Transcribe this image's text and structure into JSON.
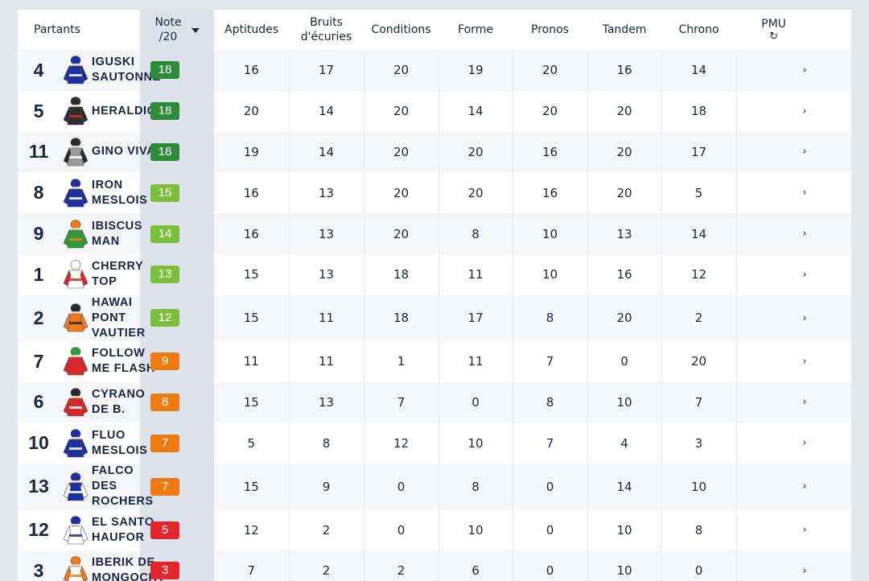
{
  "header": {
    "partants": "Partants",
    "note_line1": "Note",
    "note_line2": "/20",
    "aptitudes": "Aptitudes",
    "bruits_line1": "Bruits",
    "bruits_line2": "d'écuries",
    "conditions": "Conditions",
    "forme": "Forme",
    "pronos": "Pronos",
    "tandem": "Tandem",
    "chrono": "Chrono",
    "pmu": "PMU",
    "refresh_icon": "refresh-icon",
    "sort_icon": "caret-down-icon"
  },
  "colors": {
    "dark_green": "#2e8b3a",
    "light_green": "#7cbf3c",
    "orange": "#f07a12",
    "red": "#e3262b"
  },
  "rows": [
    {
      "num": "4",
      "name": "IGUSKI SAUTONNE",
      "note": "18",
      "note_color": "#2e8b3a",
      "aptitudes": "16",
      "bruits": "17",
      "conditions": "20",
      "forme": "19",
      "pronos": "20",
      "tandem": "16",
      "chrono": "14",
      "silk": {
        "body": "#1f2fa0",
        "sleeves": "#1f2fa0",
        "cap": "#1f2fa0",
        "accent": "#ffffff"
      },
      "chevron": "›"
    },
    {
      "num": "5",
      "name": "HERALDIQUE",
      "note": "18",
      "note_color": "#2e8b3a",
      "aptitudes": "20",
      "bruits": "14",
      "conditions": "20",
      "forme": "14",
      "pronos": "20",
      "tandem": "20",
      "chrono": "18",
      "silk": {
        "body": "#2c2c2c",
        "sleeves": "#2c2c2c",
        "cap": "#2c2c2c",
        "accent": "#c4322a"
      },
      "chevron": "›"
    },
    {
      "num": "11",
      "name": "GINO VIVA",
      "note": "18",
      "note_color": "#2e8b3a",
      "aptitudes": "19",
      "bruits": "14",
      "conditions": "20",
      "forme": "20",
      "pronos": "16",
      "tandem": "20",
      "chrono": "17",
      "silk": {
        "body": "#9a9a9a",
        "sleeves": "#2b2b2b",
        "cap": "#2b2b2b",
        "accent": "#ffffff"
      },
      "chevron": "›"
    },
    {
      "num": "8",
      "name": "IRON MESLOIS",
      "note": "15",
      "note_color": "#7cbf3c",
      "aptitudes": "16",
      "bruits": "13",
      "conditions": "20",
      "forme": "20",
      "pronos": "16",
      "tandem": "20",
      "chrono": "5",
      "silk": {
        "body": "#1f2fa0",
        "sleeves": "#1f2fa0",
        "cap": "#1f2fa0",
        "accent": "#ffffff"
      },
      "chevron": "›"
    },
    {
      "num": "9",
      "name": "IBISCUS MAN",
      "note": "14",
      "note_color": "#7cbf3c",
      "aptitudes": "16",
      "bruits": "13",
      "conditions": "20",
      "forme": "8",
      "pronos": "10",
      "tandem": "13",
      "chrono": "14",
      "silk": {
        "body": "#2e9a3a",
        "sleeves": "#2e9a3a",
        "cap": "#f07a12",
        "accent": "#f07a12"
      },
      "chevron": "›"
    },
    {
      "num": "1",
      "name": "CHERRY TOP",
      "note": "13",
      "note_color": "#7cbf3c",
      "aptitudes": "15",
      "bruits": "13",
      "conditions": "18",
      "forme": "11",
      "pronos": "10",
      "tandem": "16",
      "chrono": "12",
      "silk": {
        "body": "#ffffff",
        "sleeves": "#d8262b",
        "cap": "#ffffff",
        "accent": "#d8262b"
      },
      "chevron": "›"
    },
    {
      "num": "2",
      "name": "HAWAI PONT VAUTIER",
      "note": "12",
      "note_color": "#7cbf3c",
      "aptitudes": "15",
      "bruits": "11",
      "conditions": "18",
      "forme": "17",
      "pronos": "8",
      "tandem": "20",
      "chrono": "2",
      "silk": {
        "body": "#f07a22",
        "sleeves": "#f07a22",
        "cap": "#2b2b2b",
        "accent": "#2b2b2b"
      },
      "chevron": "›"
    },
    {
      "num": "7",
      "name": "FOLLOW ME FLASH",
      "note": "9",
      "note_color": "#f07a12",
      "aptitudes": "11",
      "bruits": "11",
      "conditions": "1",
      "forme": "11",
      "pronos": "7",
      "tandem": "0",
      "chrono": "20",
      "silk": {
        "body": "#d8262b",
        "sleeves": "#d8262b",
        "cap": "#2e9a3a",
        "accent": "#d8262b"
      },
      "chevron": "›"
    },
    {
      "num": "6",
      "name": "CYRANO DE B.",
      "note": "8",
      "note_color": "#f07a12",
      "aptitudes": "15",
      "bruits": "13",
      "conditions": "7",
      "forme": "0",
      "pronos": "8",
      "tandem": "10",
      "chrono": "7",
      "silk": {
        "body": "#d8262b",
        "sleeves": "#d8262b",
        "cap": "#2b2b2b",
        "accent": "#ffffff"
      },
      "chevron": "›"
    },
    {
      "num": "10",
      "name": "FLUO MESLOIS",
      "note": "7",
      "note_color": "#f07a12",
      "aptitudes": "5",
      "bruits": "8",
      "conditions": "12",
      "forme": "10",
      "pronos": "7",
      "tandem": "4",
      "chrono": "3",
      "silk": {
        "body": "#1f2fa0",
        "sleeves": "#1f2fa0",
        "cap": "#1f2fa0",
        "accent": "#ffffff"
      },
      "chevron": "›"
    },
    {
      "num": "13",
      "name": "FALCO DES ROCHERS",
      "note": "7",
      "note_color": "#f07a12",
      "aptitudes": "15",
      "bruits": "9",
      "conditions": "0",
      "forme": "8",
      "pronos": "0",
      "tandem": "14",
      "chrono": "10",
      "silk": {
        "body": "#1f2fa0",
        "sleeves": "#ffffff",
        "cap": "#1f2fa0",
        "accent": "#ffffff"
      },
      "chevron": "›"
    },
    {
      "num": "12",
      "name": "EL SANTO HAUFOR",
      "note": "5",
      "note_color": "#e3262b",
      "aptitudes": "12",
      "bruits": "2",
      "conditions": "0",
      "forme": "10",
      "pronos": "0",
      "tandem": "10",
      "chrono": "8",
      "silk": {
        "body": "#ffffff",
        "sleeves": "#ffffff",
        "cap": "#1f2fa0",
        "accent": "#1f2fa0"
      },
      "chevron": "›"
    },
    {
      "num": "3",
      "name": "IBERIK DE MONGOCHY",
      "note": "3",
      "note_color": "#e3262b",
      "aptitudes": "7",
      "bruits": "2",
      "conditions": "2",
      "forme": "6",
      "pronos": "0",
      "tandem": "10",
      "chrono": "0",
      "silk": {
        "body": "#ffffff",
        "sleeves": "#f07a22",
        "cap": "#f07a22",
        "accent": "#f07a22"
      },
      "chevron": "›"
    }
  ]
}
